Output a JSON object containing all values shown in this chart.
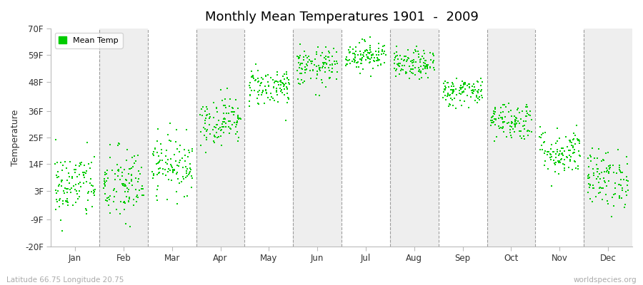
{
  "title": "Monthly Mean Temperatures 1901  -  2009",
  "ylabel": "Temperature",
  "xlabel_labels": [
    "Jan",
    "Feb",
    "Mar",
    "Apr",
    "May",
    "Jun",
    "Jul",
    "Aug",
    "Sep",
    "Oct",
    "Nov",
    "Dec"
  ],
  "ytick_labels": [
    "70F",
    "59F",
    "48F",
    "36F",
    "25F",
    "14F",
    "3F",
    "-9F",
    "-20F"
  ],
  "ytick_values": [
    70,
    59,
    48,
    36,
    25,
    14,
    3,
    -9,
    -20
  ],
  "ylim": [
    -20,
    70
  ],
  "dot_color": "#00CC00",
  "dot_size": 4,
  "background_color": "#ffffff",
  "alternating_light": "#ffffff",
  "alternating_dark": "#eeeeee",
  "footer_left": "Latitude 66.75 Longitude 20.75",
  "footer_right": "worldspecies.org",
  "legend_label": "Mean Temp",
  "monthly_means_F": [
    5,
    5,
    14,
    32,
    46,
    54,
    59,
    55,
    44,
    32,
    19,
    8
  ],
  "monthly_std_F": [
    7,
    8,
    6,
    5,
    4,
    4,
    3,
    3,
    3,
    4,
    5,
    6
  ],
  "num_years": 109
}
